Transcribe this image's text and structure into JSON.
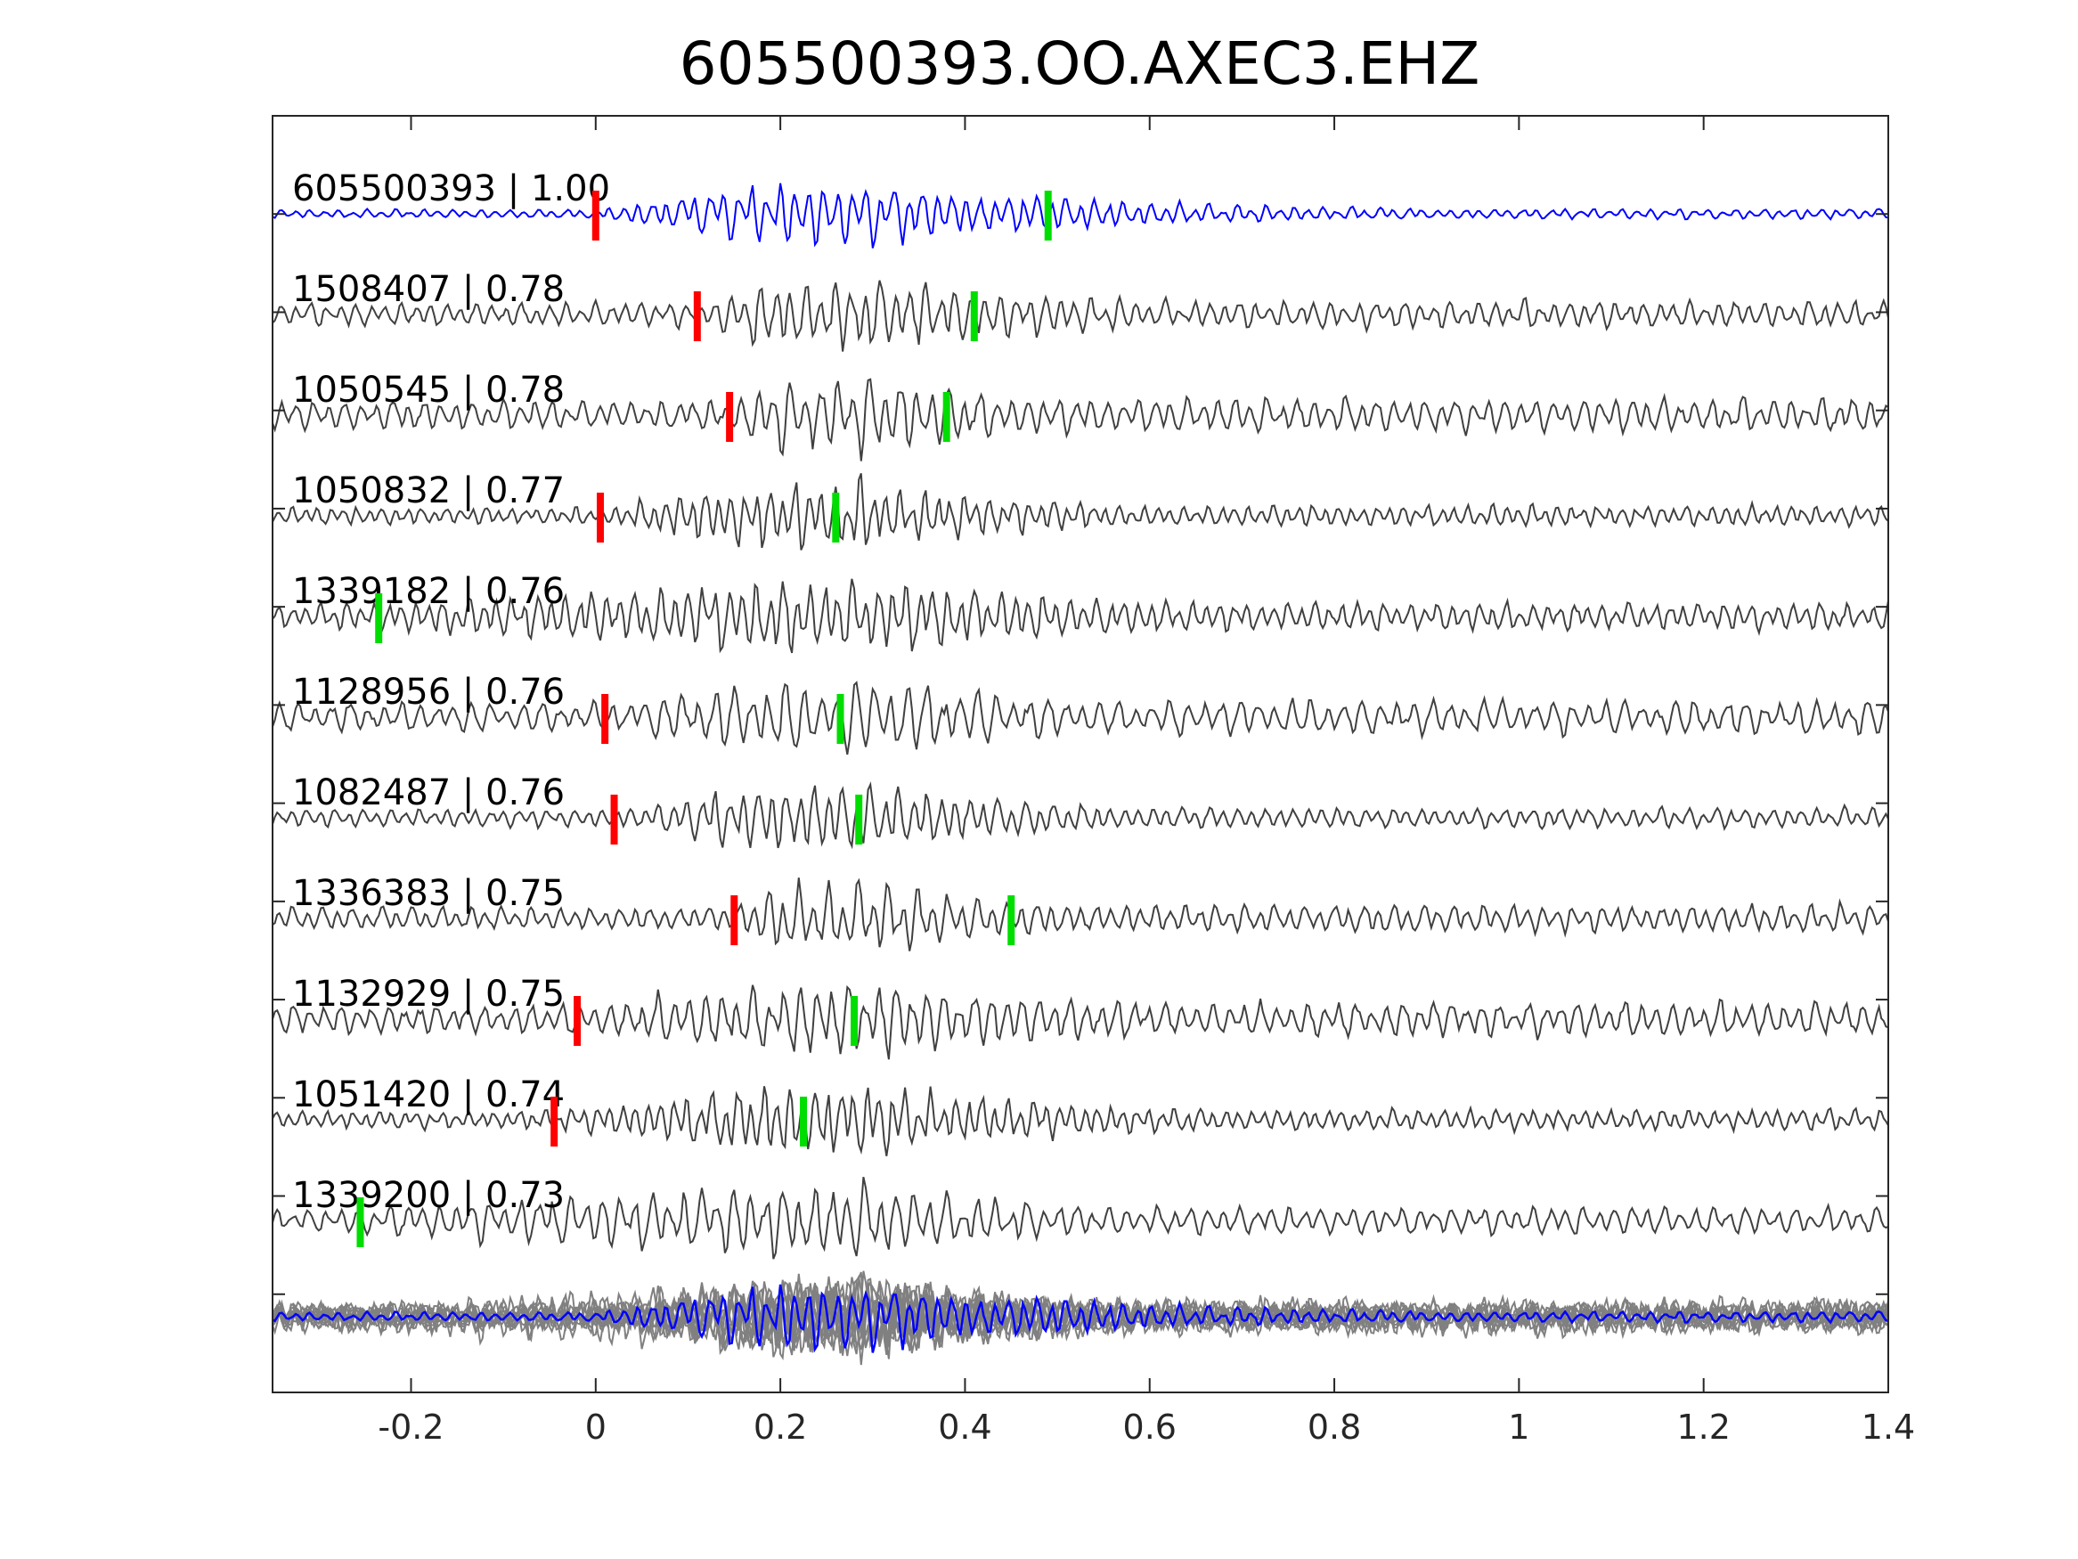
{
  "chart_data": {
    "type": "line",
    "title": "605500393.OO.AXEC3.EHZ",
    "xlabel": "",
    "ylabel": "",
    "xlim": [
      -0.35,
      1.4
    ],
    "xticks": [
      -0.2,
      0,
      0.2,
      0.4,
      0.6,
      0.8,
      1,
      1.2,
      1.4
    ],
    "xtick_labels": [
      "-0.2",
      "0",
      "0.2",
      "0.4",
      "0.6",
      "0.8",
      "1",
      "1.2",
      "1.4"
    ],
    "grid": false,
    "colors": {
      "template": "#0000ff",
      "trace": "#404040",
      "overlay": "#808080",
      "p_pick": "#ff0000",
      "s_pick": "#00dd00",
      "axes": "#262626"
    },
    "traces": [
      {
        "label": "605500393 | 1.00",
        "id": "605500393",
        "cc": 1.0,
        "template": true,
        "p_pick": 0.0,
        "s_pick": 0.49
      },
      {
        "label": "1508407 | 0.78",
        "id": "1508407",
        "cc": 0.78,
        "p_pick": 0.11,
        "s_pick": 0.41
      },
      {
        "label": "1050545 | 0.78",
        "id": "1050545",
        "cc": 0.78,
        "p_pick": 0.145,
        "s_pick": 0.38
      },
      {
        "label": "1050832 | 0.77",
        "id": "1050832",
        "cc": 0.77,
        "p_pick": 0.005,
        "s_pick": 0.26
      },
      {
        "label": "1339182 | 0.76",
        "id": "1339182",
        "cc": 0.76,
        "p_pick": null,
        "s_pick": -0.235
      },
      {
        "label": "1128956 | 0.76",
        "id": "1128956",
        "cc": 0.76,
        "p_pick": 0.01,
        "s_pick": 0.265
      },
      {
        "label": "1082487 | 0.76",
        "id": "1082487",
        "cc": 0.76,
        "p_pick": 0.02,
        "s_pick": 0.285
      },
      {
        "label": "1336383 | 0.75",
        "id": "1336383",
        "cc": 0.75,
        "p_pick": 0.15,
        "s_pick": 0.45
      },
      {
        "label": "1132929 | 0.75",
        "id": "1132929",
        "cc": 0.75,
        "p_pick": -0.02,
        "s_pick": 0.28
      },
      {
        "label": "1051420 | 0.74",
        "id": "1051420",
        "cc": 0.74,
        "p_pick": -0.045,
        "s_pick": 0.225
      },
      {
        "label": "1339200 | 0.73",
        "id": "1339200",
        "cc": 0.73,
        "p_pick": null,
        "s_pick": -0.255
      }
    ],
    "overlay": {
      "stacked": true
    }
  }
}
